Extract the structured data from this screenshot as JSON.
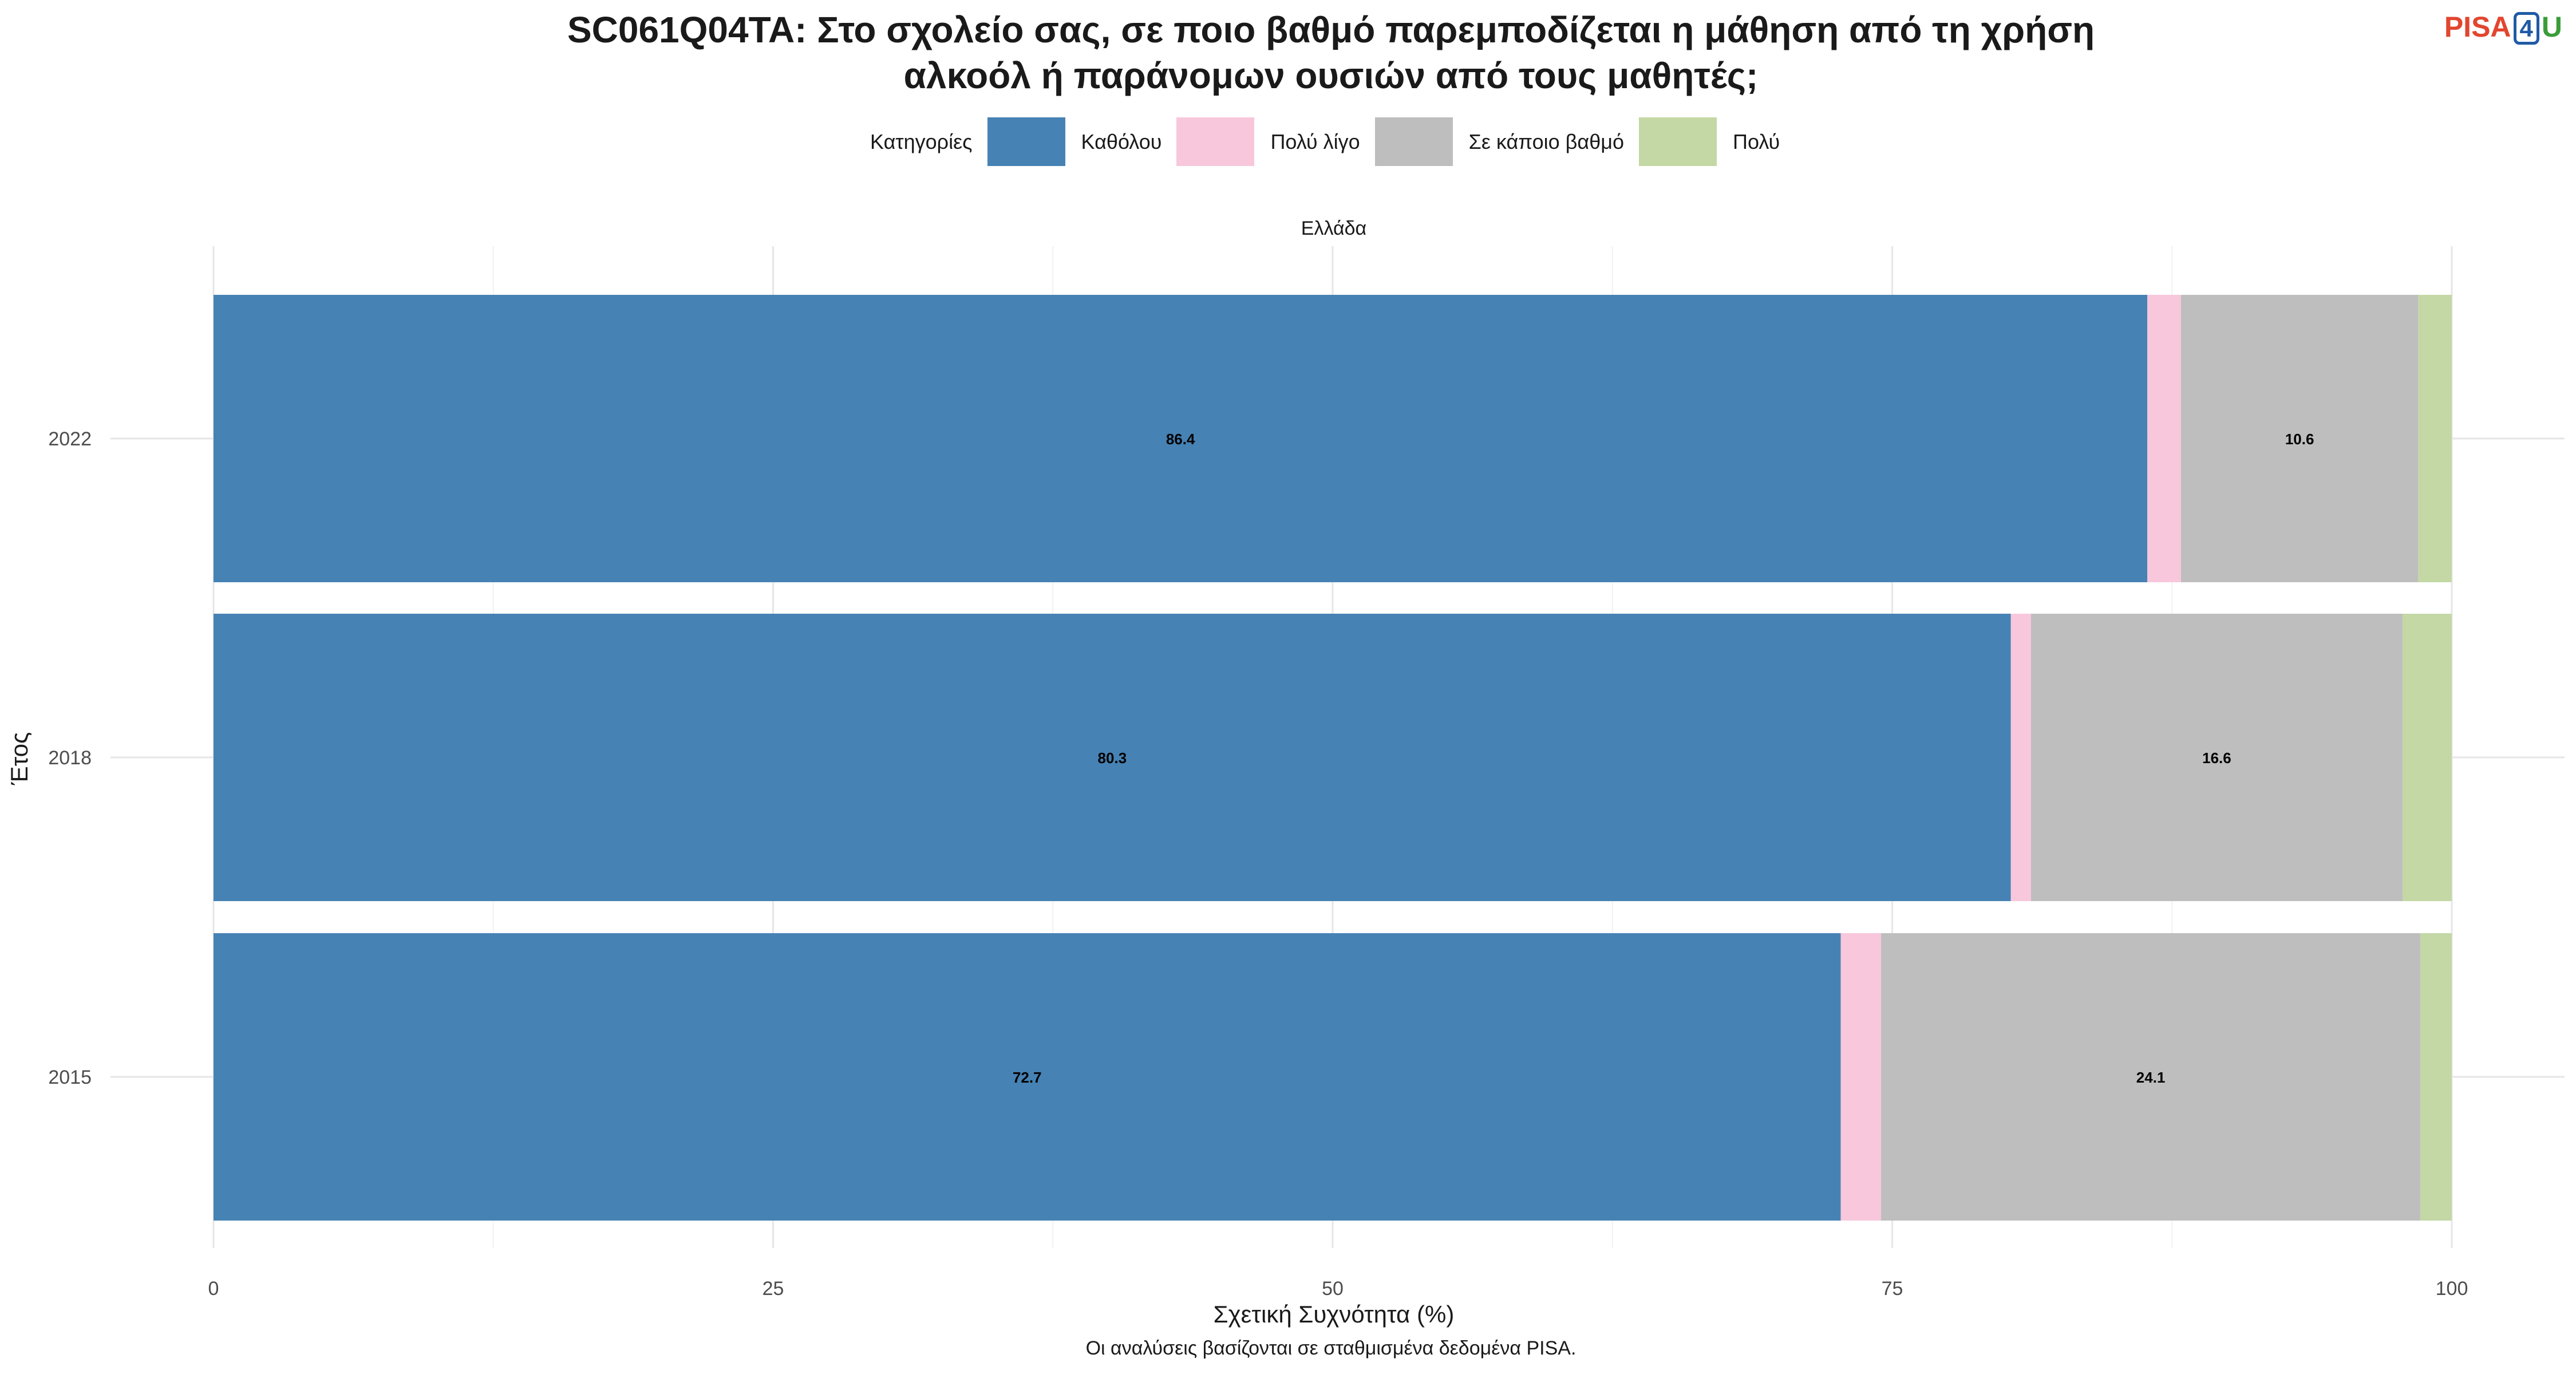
{
  "header": {
    "title_line1": "SC061Q04TA: Στο σχολείο σας, σε ποιο βαθμό παρεμποδίζεται η μάθηση από τη χρήση",
    "title_line2": "αλκοόλ ή παράνομων ουσιών από τους μαθητές;",
    "logo_pisa": "PISA",
    "logo_four": "4",
    "logo_u": "U"
  },
  "legend": {
    "title": "Κατηγορίες",
    "items": [
      {
        "label": "Καθόλου",
        "color": "#4682b4"
      },
      {
        "label": "Πολύ λίγο",
        "color": "#f8c7dc"
      },
      {
        "label": "Σε κάποιο βαθμό",
        "color": "#bebebe"
      },
      {
        "label": "Πολύ",
        "color": "#c3d8a5"
      }
    ]
  },
  "footer": {
    "note": "Οι αναλύσεις βασίζονται σε σταθμισμένα δεδομένα PISA."
  },
  "chart_data": {
    "type": "bar",
    "orientation": "horizontal",
    "stacked": true,
    "facet_label": "Ελλάδα",
    "xlabel": "Σχετική Συχνότητα (%)",
    "ylabel": "Έτος",
    "xlim": [
      0,
      100
    ],
    "xticks": [
      0,
      25,
      50,
      75,
      100
    ],
    "grid": true,
    "legend_position": "top",
    "categories": [
      "2022",
      "2018",
      "2015"
    ],
    "series": [
      {
        "name": "Καθόλου",
        "values": [
          86.4,
          80.3,
          72.7
        ],
        "labels": [
          "86.4",
          "80.3",
          "72.7"
        ]
      },
      {
        "name": "Πολύ λίγο",
        "values": [
          1.5,
          0.9,
          1.8
        ],
        "labels": [
          "",
          "",
          ""
        ]
      },
      {
        "name": "Σε κάποιο βαθμό",
        "values": [
          10.6,
          16.6,
          24.1
        ],
        "labels": [
          "10.6",
          "16.6",
          "24.1"
        ]
      },
      {
        "name": "Πολύ",
        "values": [
          1.5,
          2.2,
          1.4
        ],
        "labels": [
          "",
          "",
          ""
        ]
      }
    ]
  }
}
